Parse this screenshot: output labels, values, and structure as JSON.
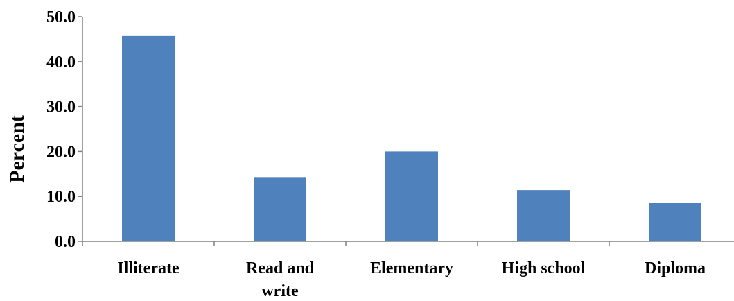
{
  "chart_data": {
    "type": "bar",
    "title": "",
    "xlabel": "",
    "ylabel": "Percent",
    "categories": [
      [
        "Illiterate"
      ],
      [
        "Read and",
        "write"
      ],
      [
        "Elementary"
      ],
      [
        "High school"
      ],
      [
        "Diploma"
      ]
    ],
    "values": [
      45.7,
      14.3,
      20.0,
      11.4,
      8.6
    ],
    "ylim": [
      0,
      50
    ],
    "yticks": [
      "0.0",
      "10.0",
      "20.0",
      "30.0",
      "40.0",
      "50.0"
    ],
    "grid": false,
    "legend": "none",
    "bar_color": "#4f81bd",
    "axis_color": "#808080"
  }
}
